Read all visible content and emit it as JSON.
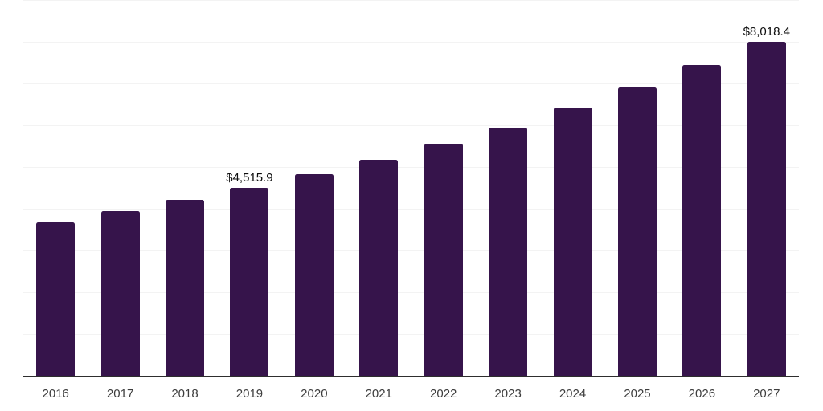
{
  "chart_data": {
    "type": "bar",
    "title": "",
    "xlabel": "",
    "ylabel": "",
    "categories": [
      "2016",
      "2017",
      "2018",
      "2019",
      "2020",
      "2021",
      "2022",
      "2023",
      "2024",
      "2025",
      "2026",
      "2027"
    ],
    "values": [
      3690,
      3960,
      4230,
      4515.9,
      4840,
      5190,
      5570,
      5970,
      6440,
      6920,
      7460,
      8018.4
    ],
    "data_labels": [
      "",
      "",
      "",
      "$4,515.9",
      "",
      "",
      "",
      "",
      "",
      "",
      "",
      "$8,018.4"
    ],
    "ylim": [
      0,
      9000
    ],
    "gridline_interval": 1000,
    "grid": true,
    "legend_position": "none",
    "bar_color": "#36144b"
  },
  "style": {
    "background_color": "#ffffff",
    "grid_color": "#f3f3f3",
    "axis_line_color": "#2e2e2e",
    "tick_label_color": "#3d3d3d",
    "data_label_color": "#0d0d0d"
  }
}
